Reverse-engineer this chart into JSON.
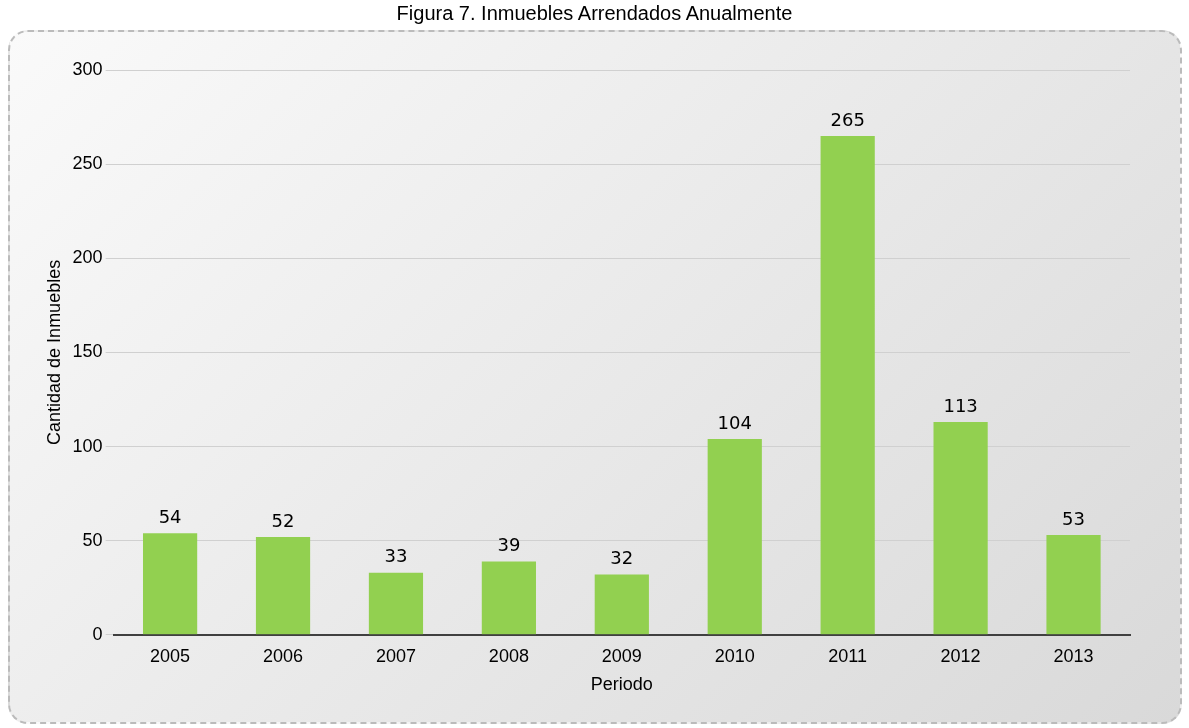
{
  "chart_data": {
    "type": "bar",
    "title": "Figura 7. Inmuebles Arrendados Anualmente",
    "xlabel": "Periodo",
    "ylabel": "Cantidad de Inmuebles",
    "categories": [
      "2005",
      "2006",
      "2007",
      "2008",
      "2009",
      "2010",
      "2011",
      "2012",
      "2013"
    ],
    "values": [
      54,
      52,
      33,
      39,
      32,
      104,
      265,
      113,
      53
    ],
    "color": "#92d050",
    "ylim": [
      0,
      300
    ],
    "yticks": [
      0,
      50,
      100,
      150,
      200,
      250,
      300
    ],
    "grid": "y",
    "data_labels": true
  }
}
